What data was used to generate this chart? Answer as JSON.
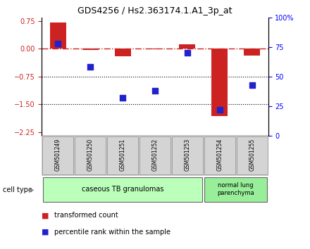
{
  "title": "GDS4256 / Hs2.363174.1.A1_3p_at",
  "samples": [
    "GSM501249",
    "GSM501250",
    "GSM501251",
    "GSM501252",
    "GSM501253",
    "GSM501254",
    "GSM501255"
  ],
  "red_values": [
    0.72,
    -0.03,
    -0.2,
    -0.02,
    0.12,
    -1.82,
    -0.18
  ],
  "blue_values": [
    78,
    58,
    32,
    38,
    70,
    22,
    43
  ],
  "ylim_left": [
    -2.35,
    0.85
  ],
  "ylim_right": [
    0,
    100
  ],
  "yticks_left": [
    0.75,
    0.0,
    -0.75,
    -1.5,
    -2.25
  ],
  "yticks_right": [
    100,
    75,
    50,
    25,
    0
  ],
  "yticks_right_labels": [
    "100%",
    "75",
    "50",
    "25",
    "0"
  ],
  "hline_y": 0.0,
  "dotted_lines": [
    -0.75,
    -1.5
  ],
  "bar_color": "#cc2222",
  "dot_color": "#2222cc",
  "group0_label": "caseous TB granulomas",
  "group0_color": "#bbffbb",
  "group1_label": "normal lung\nparenchyma",
  "group1_color": "#99ee99",
  "cell_type_label": "cell type",
  "legend_red": "transformed count",
  "legend_blue": "percentile rank within the sample",
  "bar_width": 0.5,
  "dot_size": 40,
  "background_color": "#ffffff",
  "title_fontsize": 9,
  "tick_fontsize": 7,
  "sample_fontsize": 5.5,
  "group_fontsize": 7,
  "legend_fontsize": 7
}
